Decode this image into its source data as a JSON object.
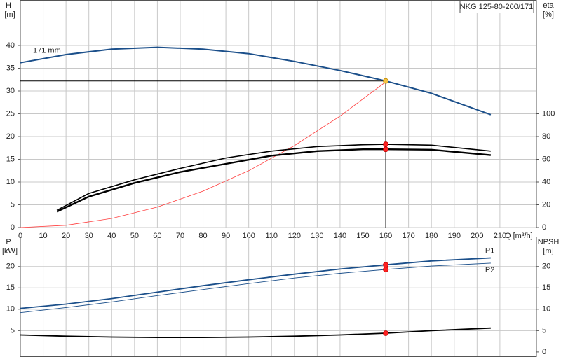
{
  "chart_data": [
    {
      "type": "line",
      "title": "NKG 125-80-200/171",
      "x_label": "Q [m³/h]",
      "y_label": "H",
      "y_unit": "[m]",
      "y2_label": "eta",
      "y2_unit": "[%]",
      "grid": true,
      "xlim": [
        0,
        226
      ],
      "ylim": [
        0,
        50
      ],
      "y2lim": [
        0,
        200
      ],
      "xticks": [
        0,
        10,
        20,
        30,
        40,
        50,
        60,
        70,
        80,
        90,
        100,
        110,
        120,
        130,
        140,
        150,
        160,
        170,
        180,
        190,
        200,
        210
      ],
      "yticks": [
        0,
        5,
        10,
        15,
        20,
        25,
        30,
        35,
        40
      ],
      "y2ticks": [
        0,
        20,
        40,
        60,
        80,
        100
      ],
      "series": [
        {
          "name": "171 mm",
          "color": "#1b4f8a",
          "width": 2,
          "x": [
            0,
            20,
            40,
            60,
            80,
            100,
            120,
            140,
            160,
            180,
            206
          ],
          "values": [
            36.2,
            38,
            39.2,
            39.6,
            39.2,
            38.2,
            36.5,
            34.5,
            32.2,
            29.5,
            24.8
          ]
        },
        {
          "color": "#ff3b3b",
          "width": 0.8,
          "x": [
            0,
            20,
            40,
            60,
            80,
            100,
            120,
            140,
            160
          ],
          "values": [
            0,
            0.5,
            2,
            4.5,
            8,
            12.5,
            18,
            24.5,
            32
          ]
        },
        {
          "color": "#000000",
          "width": 1.6,
          "axis": "y2",
          "x": [
            16,
            30,
            50,
            70,
            90,
            110,
            130,
            150,
            160,
            180,
            206
          ],
          "values": [
            15.2,
            30,
            42,
            52,
            61.2,
            67.2,
            71.2,
            72.8,
            73.2,
            72.4,
            67.2
          ]
        },
        {
          "color": "#000000",
          "width": 2.4,
          "axis": "y2",
          "x": [
            16,
            30,
            50,
            70,
            90,
            110,
            130,
            150,
            160,
            180,
            206
          ],
          "values": [
            14,
            27.2,
            39.2,
            48.8,
            56,
            63.2,
            67.2,
            68.8,
            68.8,
            68.4,
            63.6
          ]
        }
      ],
      "duty_point": {
        "x": 160,
        "y": 32.2
      },
      "markers": [
        {
          "x": 160,
          "y": 32.2,
          "color": "#f5c242"
        },
        {
          "x": 160,
          "y": 73.2,
          "axis": "y2",
          "color": "#ff2020"
        },
        {
          "x": 160,
          "y": 68.8,
          "axis": "y2",
          "color": "#ff2020"
        }
      ]
    },
    {
      "type": "line",
      "y_label": "P",
      "y_unit": "[kW]",
      "y2_label": "NPSH",
      "y2_unit": "[m]",
      "grid": true,
      "xlim": [
        0,
        226
      ],
      "ylim": [
        -1,
        27
      ],
      "y2lim": [
        -1,
        27
      ],
      "yticks": [
        5,
        10,
        15,
        20
      ],
      "y2ticks": [
        0,
        5,
        10,
        15,
        20
      ],
      "series": [
        {
          "name": "P1",
          "color": "#1b4f8a",
          "width": 1.8,
          "x": [
            0,
            20,
            40,
            60,
            80,
            100,
            120,
            140,
            160,
            180,
            206
          ],
          "values": [
            10.2,
            11.2,
            12.5,
            14,
            15.5,
            16.9,
            18.2,
            19.4,
            20.4,
            21.3,
            22
          ]
        },
        {
          "name": "P2",
          "color": "#1b4f8a",
          "width": 0.9,
          "x": [
            0,
            20,
            40,
            60,
            80,
            100,
            120,
            140,
            160,
            180,
            206
          ],
          "values": [
            9.2,
            10.4,
            11.7,
            13.2,
            14.6,
            16,
            17.3,
            18.4,
            19.3,
            20.1,
            20.8
          ]
        },
        {
          "color": "#000000",
          "width": 1.8,
          "axis": "y2",
          "x": [
            0,
            20,
            40,
            60,
            80,
            100,
            120,
            140,
            160,
            180,
            206
          ],
          "values": [
            4.0,
            3.7,
            3.5,
            3.4,
            3.4,
            3.5,
            3.7,
            4.0,
            4.4,
            5.0,
            5.6
          ]
        }
      ],
      "markers": [
        {
          "x": 160,
          "y": 20.4,
          "color": "#ff2020"
        },
        {
          "x": 160,
          "y": 19.3,
          "color": "#ff2020"
        },
        {
          "x": 160,
          "y": 4.4,
          "axis": "y2",
          "color": "#ff2020"
        }
      ]
    }
  ]
}
